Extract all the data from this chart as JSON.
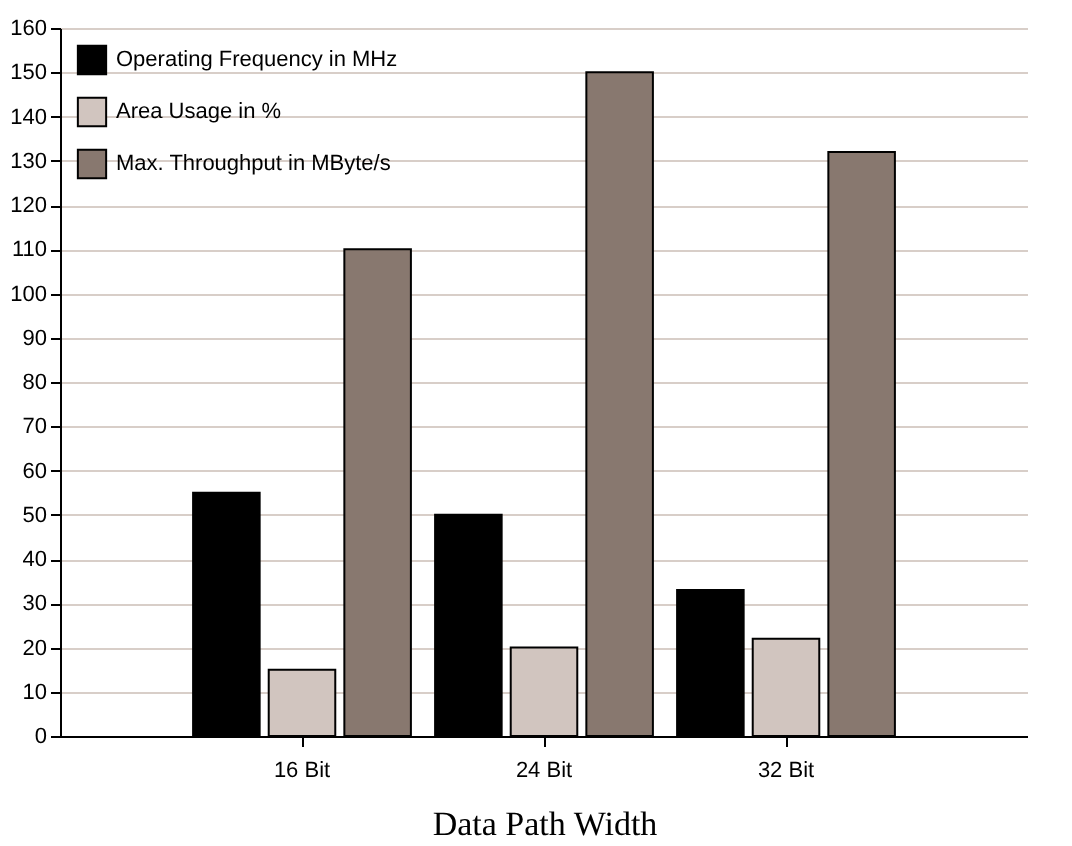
{
  "chart_data": {
    "type": "bar",
    "xlabel": "Data Path Width",
    "categories": [
      "16 Bit",
      "24 Bit",
      "32 Bit"
    ],
    "series": [
      {
        "name": "Operating Frequency in MHz",
        "color": "#000000",
        "values": [
          55,
          50,
          33
        ]
      },
      {
        "name": "Area Usage in %",
        "color": "#d1c5bf",
        "values": [
          15,
          20,
          22
        ]
      },
      {
        "name": "Max. Throughput in MByte/s",
        "color": "#88786f",
        "values": [
          110,
          150,
          132
        ]
      }
    ],
    "ylim": [
      0,
      160
    ],
    "yticks": [
      0,
      10,
      20,
      30,
      40,
      50,
      60,
      70,
      80,
      90,
      100,
      110,
      120,
      130,
      140,
      150,
      160
    ],
    "grid": "y",
    "legend": "top left"
  }
}
